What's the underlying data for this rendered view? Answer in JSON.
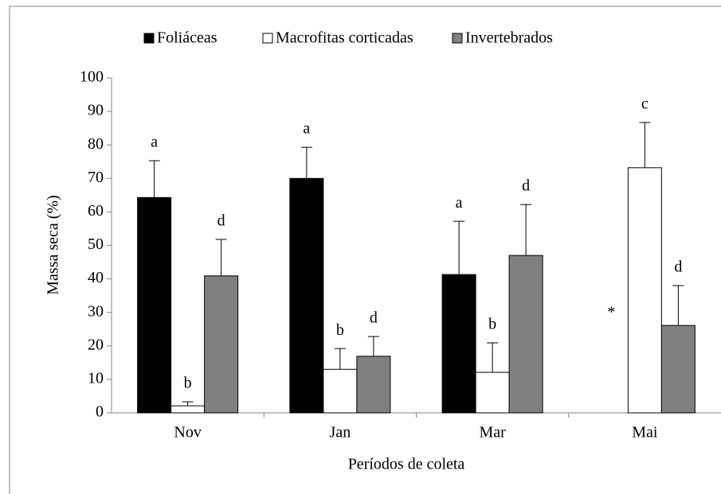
{
  "chart_data": {
    "type": "bar",
    "categories": [
      "Nov",
      "Jan",
      "Mar",
      "Mai"
    ],
    "series": [
      {
        "name": "Foliáceas",
        "color": "#000000",
        "values": [
          64.3,
          70,
          41.3,
          null
        ],
        "errors": [
          11,
          9.3,
          15.9,
          null
        ],
        "labels": [
          "a",
          "a",
          "a",
          "*"
        ]
      },
      {
        "name": "Macrofitas corticadas",
        "color": "#ffffff",
        "values": [
          2.1,
          13,
          12.1,
          73.2
        ],
        "errors": [
          1.2,
          6.2,
          8.8,
          13.5
        ],
        "labels": [
          "b",
          "b",
          "b",
          "c"
        ]
      },
      {
        "name": "Invertebrados",
        "color": "#808080",
        "values": [
          40.9,
          16.9,
          47,
          26.1
        ],
        "errors": [
          10.9,
          5.9,
          15.2,
          11.9
        ],
        "labels": [
          "d",
          "d",
          "d",
          "d"
        ]
      }
    ],
    "xlabel": "Períodos de coleta",
    "ylabel": "Massa seca (%)",
    "ylim": [
      0,
      100
    ],
    "yticks": [
      0,
      10,
      20,
      30,
      40,
      50,
      60,
      70,
      80,
      90,
      100
    ],
    "grid": false,
    "legend": "top"
  }
}
